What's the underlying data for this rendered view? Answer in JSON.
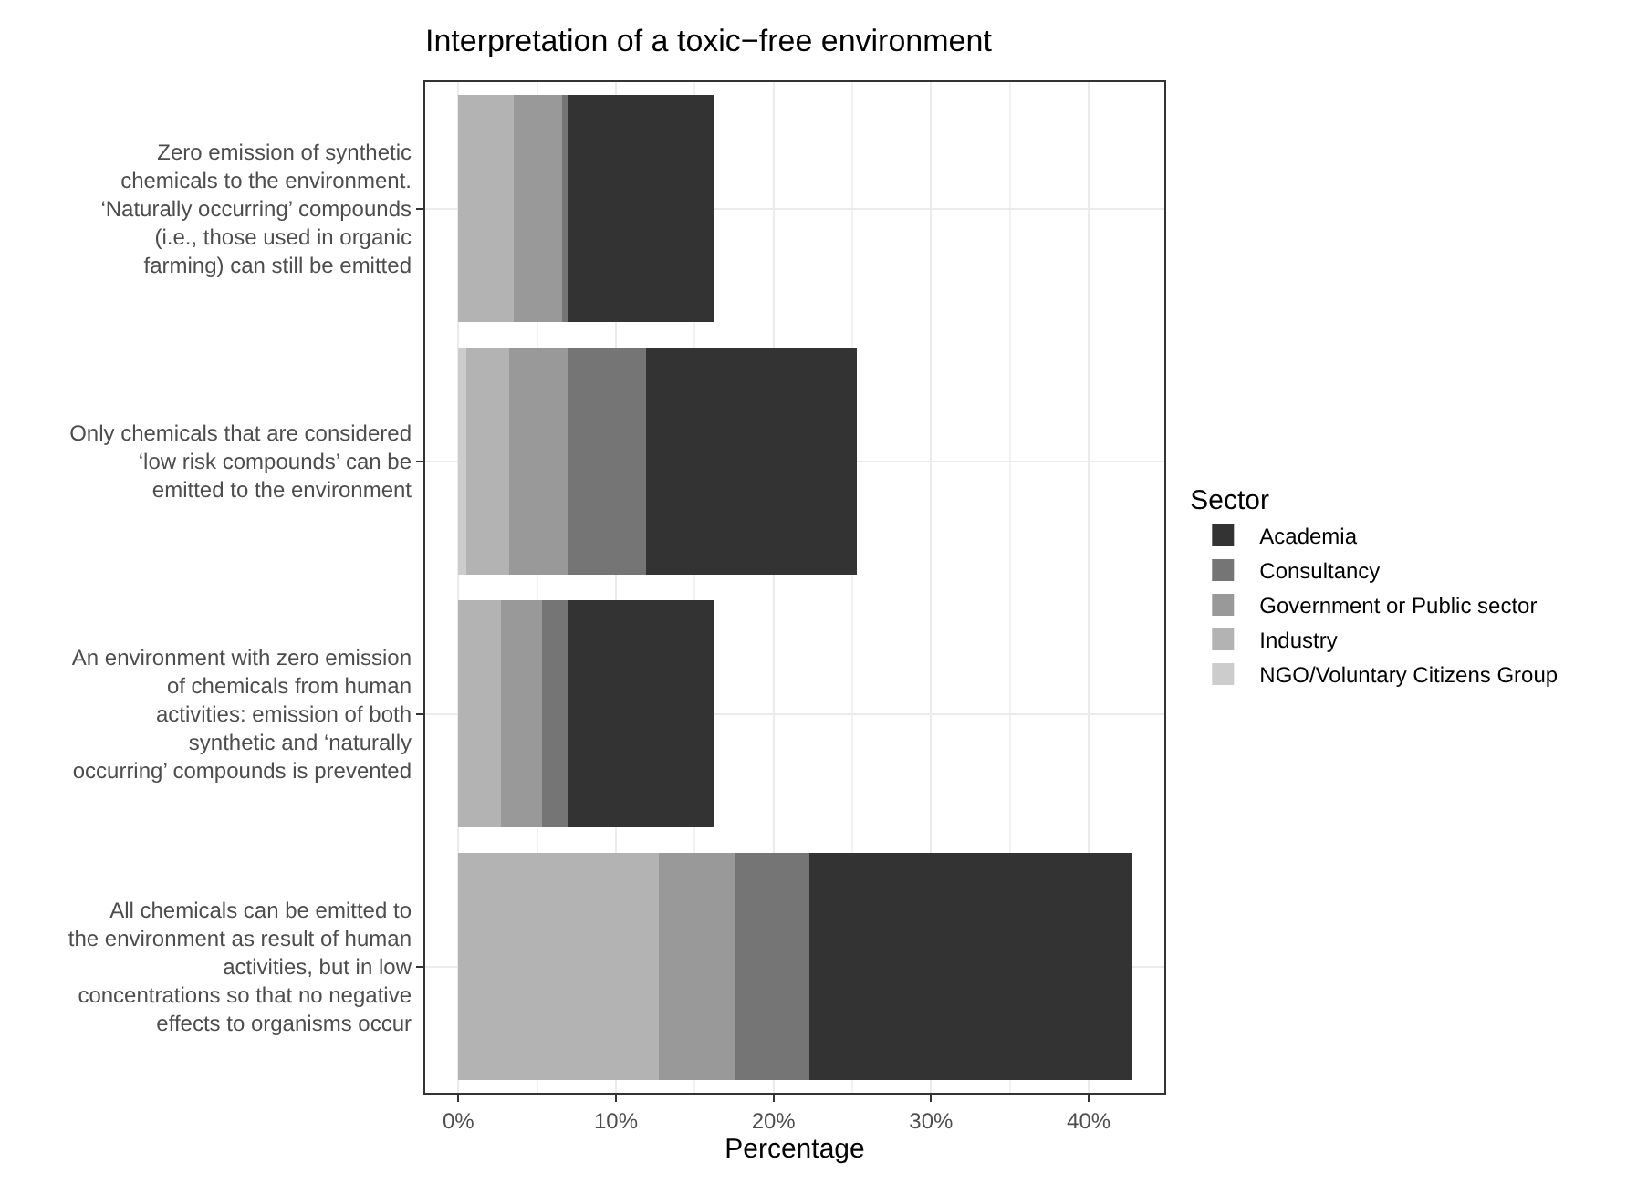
{
  "chart_data": {
    "type": "bar",
    "orientation": "horizontal",
    "stacked": true,
    "title": "Interpretation of a toxic−free environment",
    "xlabel": "Percentage",
    "legend_title": "Sector",
    "categories": [
      "Zero emission of synthetic\nchemicals to the environment.\n‘Naturally occurring’ compounds\n(i.e., those used in organic\nfarming) can still be emitted",
      "Only chemicals that are considered\n‘low risk compounds’ can be\nemitted to the environment",
      "An environment with zero emission\nof chemicals from human\nactivities: emission of both\nsynthetic and ‘naturally\noccurring’ compounds is prevented",
      "All chemicals can be emitted to\nthe environment as result of human\nactivities, but in low\nconcentrations so that no negative\neffects to organisms occur"
    ],
    "series": [
      {
        "name": "NGO/Voluntary Citizens Group",
        "color": "#cccccc",
        "values": [
          null,
          0.5,
          null,
          null
        ]
      },
      {
        "name": "Industry",
        "color": "#b3b3b3",
        "values": [
          3.5,
          2.7,
          2.7,
          12.7
        ]
      },
      {
        "name": "Government or Public sector",
        "color": "#999999",
        "values": [
          3.1,
          3.8,
          2.6,
          4.8
        ]
      },
      {
        "name": "Consultancy",
        "color": "#757575",
        "values": [
          0.4,
          4.9,
          1.7,
          4.8
        ]
      },
      {
        "name": "Academia",
        "color": "#333333",
        "values": [
          9.2,
          13.4,
          9.2,
          20.5
        ]
      }
    ],
    "xlim": [
      -2.1,
      44.8
    ],
    "xticks": [
      {
        "value": 0,
        "label": "0%"
      },
      {
        "value": 10,
        "label": "10%"
      },
      {
        "value": 20,
        "label": "20%"
      },
      {
        "value": 30,
        "label": "30%"
      },
      {
        "value": 40,
        "label": "40%"
      }
    ],
    "grid": true,
    "legend": "right"
  }
}
